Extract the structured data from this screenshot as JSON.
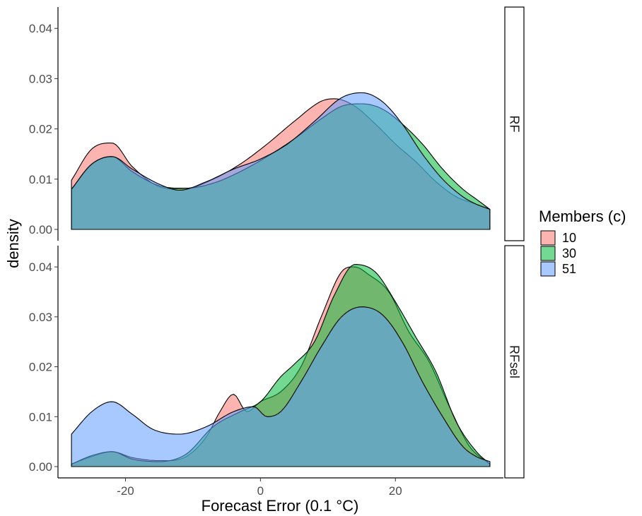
{
  "chart_data": {
    "type": "area",
    "subtype": "density-faceted",
    "xlabel": "Forecast Error (0.1 °C)",
    "ylabel": "density",
    "xlim": [
      -30,
      36
    ],
    "x_ticks": [
      -20,
      0,
      20
    ],
    "x_tick_labels": [
      "-20",
      "0",
      "20"
    ],
    "ylim": [
      0,
      0.042
    ],
    "y_ticks": [
      0.0,
      0.01,
      0.02,
      0.03,
      0.04
    ],
    "y_tick_labels": [
      "0.00",
      "0.01",
      "0.02",
      "0.03",
      "0.04"
    ],
    "grid": false,
    "legend": {
      "title": "Members (c)",
      "position": "right",
      "entries": [
        "10",
        "30",
        "51"
      ]
    },
    "colors": {
      "10": "#F8766D",
      "30": "#00BA38",
      "51": "#619CFF"
    },
    "facets": [
      {
        "label": "RF",
        "series": [
          {
            "name": "10",
            "x": [
              -28,
              -25,
              -22,
              -19,
              -15,
              -11,
              -7,
              -3,
              1,
              5,
              9,
              11,
              14,
              17,
              20,
              23,
              26,
              29,
              32,
              34
            ],
            "values": [
              0.0098,
              0.016,
              0.0172,
              0.0125,
              0.0085,
              0.0082,
              0.01,
              0.013,
              0.017,
              0.0215,
              0.0255,
              0.026,
              0.0245,
              0.021,
              0.017,
              0.0135,
              0.0095,
              0.0065,
              0.005,
              0.004
            ]
          },
          {
            "name": "30",
            "x": [
              -28,
              -25,
              -22,
              -19,
              -15,
              -11,
              -7,
              -3,
              1,
              5,
              9,
              12,
              15,
              18,
              21,
              24,
              27,
              30,
              32,
              34
            ],
            "values": [
              0.008,
              0.013,
              0.0145,
              0.0115,
              0.0087,
              0.0082,
              0.0092,
              0.0115,
              0.0145,
              0.018,
              0.022,
              0.0245,
              0.025,
              0.024,
              0.021,
              0.017,
              0.012,
              0.008,
              0.006,
              0.004
            ]
          },
          {
            "name": "51",
            "x": [
              -28,
              -25,
              -22,
              -19,
              -15,
              -12,
              -8,
              -4,
              0,
              4,
              8,
              12,
              15,
              18,
              21,
              24,
              27,
              30,
              32,
              34
            ],
            "values": [
              0.008,
              0.013,
              0.0145,
              0.012,
              0.009,
              0.0078,
              0.0095,
              0.012,
              0.014,
              0.017,
              0.0215,
              0.0262,
              0.0272,
              0.0255,
              0.021,
              0.015,
              0.01,
              0.0065,
              0.005,
              0.004
            ]
          }
        ]
      },
      {
        "label": "RFsel",
        "series": [
          {
            "name": "10",
            "x": [
              -28,
              -25,
              -22,
              -19,
              -15,
              -11,
              -8,
              -6,
              -4,
              -2,
              0,
              3,
              6,
              9,
              12,
              14,
              16,
              19,
              22,
              25,
              28,
              31,
              34
            ],
            "values": [
              0.0005,
              0.002,
              0.003,
              0.0018,
              0.0012,
              0.002,
              0.006,
              0.011,
              0.0145,
              0.011,
              0.013,
              0.015,
              0.02,
              0.03,
              0.039,
              0.04,
              0.0385,
              0.035,
              0.027,
              0.021,
              0.012,
              0.004,
              0.0005
            ]
          },
          {
            "name": "30",
            "x": [
              -28,
              -25,
              -22,
              -19,
              -15,
              -11,
              -7,
              -3,
              0,
              3,
              5,
              8,
              11,
              14,
              17,
              20,
              23,
              26,
              29,
              32,
              34
            ],
            "values": [
              0.0005,
              0.0022,
              0.003,
              0.0015,
              0.001,
              0.0025,
              0.008,
              0.011,
              0.013,
              0.018,
              0.0205,
              0.025,
              0.0345,
              0.0405,
              0.039,
              0.033,
              0.026,
              0.019,
              0.009,
              0.003,
              0.0005
            ]
          },
          {
            "name": "51",
            "x": [
              -28,
              -25,
              -22,
              -19,
              -16,
              -12,
              -8,
              -4,
              -1,
              1,
              3,
              6,
              9,
              12,
              15,
              18,
              21,
              24,
              27,
              30,
              32,
              34
            ],
            "values": [
              0.0065,
              0.011,
              0.013,
              0.0105,
              0.0075,
              0.0065,
              0.008,
              0.011,
              0.012,
              0.01,
              0.011,
              0.017,
              0.024,
              0.03,
              0.032,
              0.0305,
              0.025,
              0.017,
              0.01,
              0.004,
              0.002,
              0.001
            ]
          }
        ]
      }
    ]
  }
}
